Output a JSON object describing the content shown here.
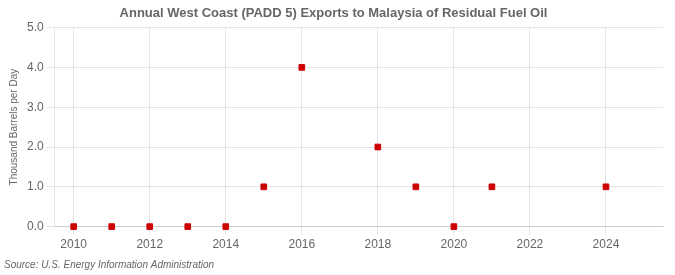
{
  "chart_data": {
    "type": "scatter",
    "title": "Annual West Coast (PADD 5) Exports to Malaysia of Residual Fuel Oil",
    "ylabel": "Thousand Barrels per Day",
    "annotations": [
      "Source: U.S. Energy Information Administration"
    ],
    "x": [
      2010,
      2011,
      2012,
      2013,
      2014,
      2015,
      2016,
      2018,
      2019,
      2020,
      2021,
      2024
    ],
    "values": [
      0.0,
      0.0,
      0.0,
      0.0,
      0.0,
      1.0,
      4.0,
      2.0,
      1.0,
      0.0,
      1.0,
      1.0
    ],
    "color": "#cc0000",
    "marker": "square",
    "xlim": [
      2009.5,
      2025.5
    ],
    "ylim": [
      0.0,
      5.0
    ],
    "xticks": [
      2010,
      2012,
      2014,
      2016,
      2018,
      2020,
      2022,
      2024
    ],
    "yticks": [
      {
        "value": 0.0,
        "label": "0.0"
      },
      {
        "value": 1.0,
        "label": "1.0"
      },
      {
        "value": 2.0,
        "label": "2.0"
      },
      {
        "value": 3.0,
        "label": "3.0"
      },
      {
        "value": 4.0,
        "label": "4.0"
      },
      {
        "value": 5.0,
        "label": "5.0"
      }
    ],
    "grid": true
  }
}
